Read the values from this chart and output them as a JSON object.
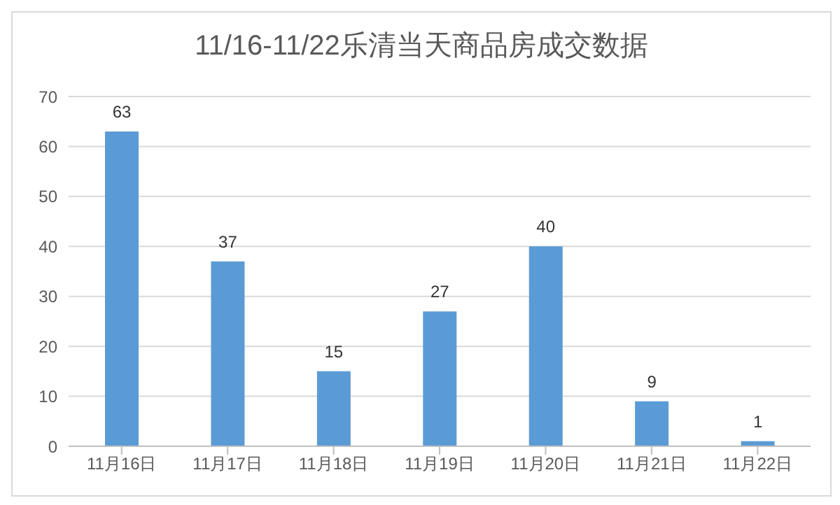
{
  "chart_data": {
    "type": "bar",
    "title": "11/16-11/22乐清当天商品房成交数据",
    "categories": [
      "11月16日",
      "11月17日",
      "11月18日",
      "11月19日",
      "11月20日",
      "11月21日",
      "11月22日"
    ],
    "values": [
      63,
      37,
      15,
      27,
      40,
      9,
      1
    ],
    "color": "#5b9bd5",
    "ylim": [
      0,
      70
    ],
    "yticks": [
      0,
      10,
      20,
      30,
      40,
      50,
      60,
      70
    ],
    "grid": "y",
    "data_labels": true
  }
}
